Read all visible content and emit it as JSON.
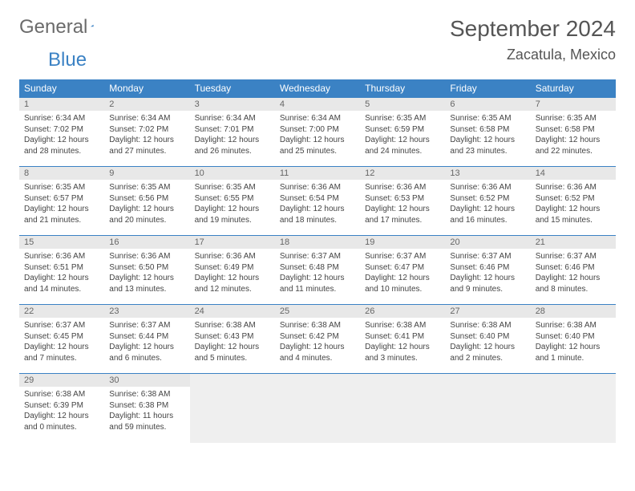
{
  "logo": {
    "word1": "General",
    "word2": "Blue"
  },
  "title": "September 2024",
  "location": "Zacatula, Mexico",
  "colors": {
    "header_bg": "#3b82c4",
    "header_text": "#ffffff",
    "daynum_bg": "#e8e8e8",
    "row_border": "#3b82c4",
    "body_text": "#444444",
    "title_text": "#555555",
    "logo_gray": "#6b6b6b",
    "logo_blue": "#3b82c4"
  },
  "weekdays": [
    "Sunday",
    "Monday",
    "Tuesday",
    "Wednesday",
    "Thursday",
    "Friday",
    "Saturday"
  ],
  "weeks": [
    [
      {
        "n": "1",
        "sunrise": "6:34 AM",
        "sunset": "7:02 PM",
        "daylight": "12 hours and 28 minutes."
      },
      {
        "n": "2",
        "sunrise": "6:34 AM",
        "sunset": "7:02 PM",
        "daylight": "12 hours and 27 minutes."
      },
      {
        "n": "3",
        "sunrise": "6:34 AM",
        "sunset": "7:01 PM",
        "daylight": "12 hours and 26 minutes."
      },
      {
        "n": "4",
        "sunrise": "6:34 AM",
        "sunset": "7:00 PM",
        "daylight": "12 hours and 25 minutes."
      },
      {
        "n": "5",
        "sunrise": "6:35 AM",
        "sunset": "6:59 PM",
        "daylight": "12 hours and 24 minutes."
      },
      {
        "n": "6",
        "sunrise": "6:35 AM",
        "sunset": "6:58 PM",
        "daylight": "12 hours and 23 minutes."
      },
      {
        "n": "7",
        "sunrise": "6:35 AM",
        "sunset": "6:58 PM",
        "daylight": "12 hours and 22 minutes."
      }
    ],
    [
      {
        "n": "8",
        "sunrise": "6:35 AM",
        "sunset": "6:57 PM",
        "daylight": "12 hours and 21 minutes."
      },
      {
        "n": "9",
        "sunrise": "6:35 AM",
        "sunset": "6:56 PM",
        "daylight": "12 hours and 20 minutes."
      },
      {
        "n": "10",
        "sunrise": "6:35 AM",
        "sunset": "6:55 PM",
        "daylight": "12 hours and 19 minutes."
      },
      {
        "n": "11",
        "sunrise": "6:36 AM",
        "sunset": "6:54 PM",
        "daylight": "12 hours and 18 minutes."
      },
      {
        "n": "12",
        "sunrise": "6:36 AM",
        "sunset": "6:53 PM",
        "daylight": "12 hours and 17 minutes."
      },
      {
        "n": "13",
        "sunrise": "6:36 AM",
        "sunset": "6:52 PM",
        "daylight": "12 hours and 16 minutes."
      },
      {
        "n": "14",
        "sunrise": "6:36 AM",
        "sunset": "6:52 PM",
        "daylight": "12 hours and 15 minutes."
      }
    ],
    [
      {
        "n": "15",
        "sunrise": "6:36 AM",
        "sunset": "6:51 PM",
        "daylight": "12 hours and 14 minutes."
      },
      {
        "n": "16",
        "sunrise": "6:36 AM",
        "sunset": "6:50 PM",
        "daylight": "12 hours and 13 minutes."
      },
      {
        "n": "17",
        "sunrise": "6:36 AM",
        "sunset": "6:49 PM",
        "daylight": "12 hours and 12 minutes."
      },
      {
        "n": "18",
        "sunrise": "6:37 AM",
        "sunset": "6:48 PM",
        "daylight": "12 hours and 11 minutes."
      },
      {
        "n": "19",
        "sunrise": "6:37 AM",
        "sunset": "6:47 PM",
        "daylight": "12 hours and 10 minutes."
      },
      {
        "n": "20",
        "sunrise": "6:37 AM",
        "sunset": "6:46 PM",
        "daylight": "12 hours and 9 minutes."
      },
      {
        "n": "21",
        "sunrise": "6:37 AM",
        "sunset": "6:46 PM",
        "daylight": "12 hours and 8 minutes."
      }
    ],
    [
      {
        "n": "22",
        "sunrise": "6:37 AM",
        "sunset": "6:45 PM",
        "daylight": "12 hours and 7 minutes."
      },
      {
        "n": "23",
        "sunrise": "6:37 AM",
        "sunset": "6:44 PM",
        "daylight": "12 hours and 6 minutes."
      },
      {
        "n": "24",
        "sunrise": "6:38 AM",
        "sunset": "6:43 PM",
        "daylight": "12 hours and 5 minutes."
      },
      {
        "n": "25",
        "sunrise": "6:38 AM",
        "sunset": "6:42 PM",
        "daylight": "12 hours and 4 minutes."
      },
      {
        "n": "26",
        "sunrise": "6:38 AM",
        "sunset": "6:41 PM",
        "daylight": "12 hours and 3 minutes."
      },
      {
        "n": "27",
        "sunrise": "6:38 AM",
        "sunset": "6:40 PM",
        "daylight": "12 hours and 2 minutes."
      },
      {
        "n": "28",
        "sunrise": "6:38 AM",
        "sunset": "6:40 PM",
        "daylight": "12 hours and 1 minute."
      }
    ],
    [
      {
        "n": "29",
        "sunrise": "6:38 AM",
        "sunset": "6:39 PM",
        "daylight": "12 hours and 0 minutes."
      },
      {
        "n": "30",
        "sunrise": "6:38 AM",
        "sunset": "6:38 PM",
        "daylight": "11 hours and 59 minutes."
      },
      null,
      null,
      null,
      null,
      null
    ]
  ],
  "labels": {
    "sunrise": "Sunrise:",
    "sunset": "Sunset:",
    "daylight": "Daylight:"
  }
}
